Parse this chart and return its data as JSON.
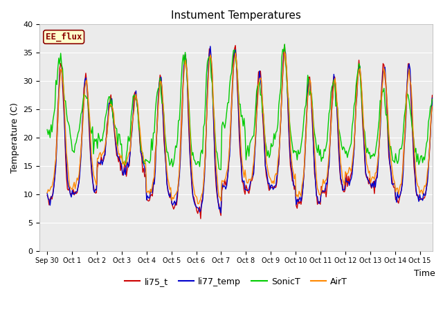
{
  "title": "Instument Temperatures",
  "xlabel": "Time",
  "ylabel": "Temperature (C)",
  "ylim": [
    0,
    40
  ],
  "yticks": [
    0,
    5,
    10,
    15,
    20,
    25,
    30,
    35,
    40
  ],
  "xtick_labels": [
    "Sep 30",
    "Oct 1",
    "Oct 2",
    "Oct 3",
    "Oct 4",
    "Oct 5",
    "Oct 6",
    "Oct 7",
    "Oct 8",
    "Oct 9",
    "Oct 10",
    "Oct 11",
    "Oct 12",
    "Oct 13",
    "Oct 14",
    "Oct 15"
  ],
  "annotation_text": "EE_flux",
  "annotation_bg": "#FFFFCC",
  "annotation_border": "#8B0000",
  "series_colors": [
    "#CC0000",
    "#0000CC",
    "#00CC00",
    "#FF8800"
  ],
  "series_labels": [
    "li75_t",
    "li77_temp",
    "SonicT",
    "AirT"
  ],
  "bg_color": "#EBEBEB",
  "fig_bg": "#FFFFFF",
  "grid_color": "#FFFFFF",
  "linewidth": 1.0
}
